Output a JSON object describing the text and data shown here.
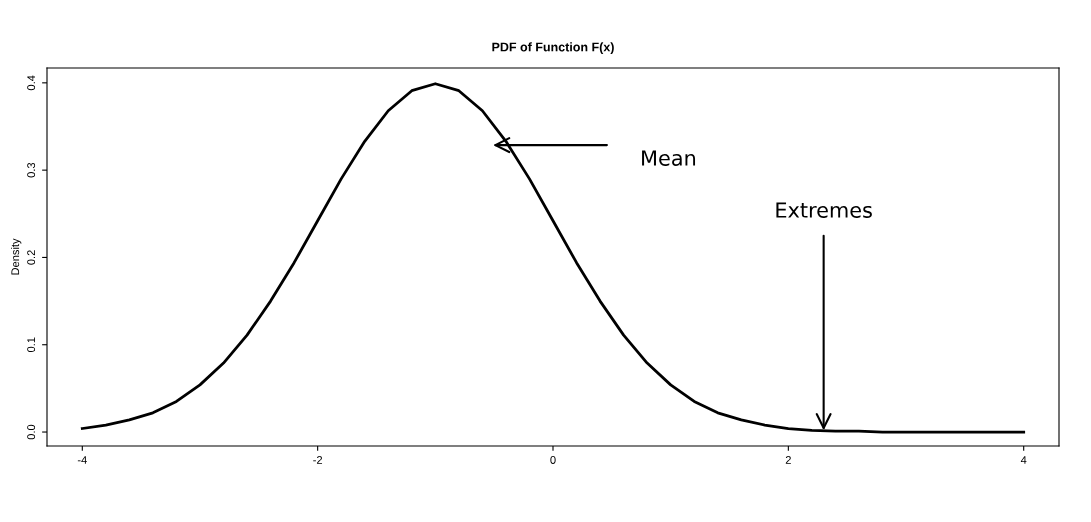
{
  "chart_data": {
    "type": "line",
    "title": "PDF of Function F(x)",
    "ylabel": "Density",
    "x": [
      -4,
      -3.8,
      -3.6,
      -3.4,
      -3.2,
      -3,
      -2.8,
      -2.6,
      -2.4,
      -2.2,
      -2,
      -1.8,
      -1.6,
      -1.4,
      -1.2,
      -1,
      -0.8,
      -0.6,
      -0.4,
      -0.2,
      0,
      0.2,
      0.4,
      0.6,
      0.8,
      1,
      1.2,
      1.4,
      1.6,
      1.8,
      2,
      2.2,
      2.4,
      2.6,
      2.8,
      3,
      3.2,
      3.4,
      3.6,
      3.8,
      4
    ],
    "series": [
      {
        "color": "#000000",
        "values": [
          0.004,
          0.008,
          0.014,
          0.022,
          0.035,
          0.054,
          0.079,
          0.111,
          0.15,
          0.194,
          0.242,
          0.29,
          0.333,
          0.368,
          0.391,
          0.399,
          0.391,
          0.368,
          0.333,
          0.29,
          0.242,
          0.194,
          0.15,
          0.111,
          0.079,
          0.054,
          0.035,
          0.022,
          0.014,
          0.008,
          0.004,
          0.002,
          0.001,
          0.001,
          0.0,
          0.0,
          0.0,
          0.0,
          0.0,
          0.0,
          0.0
        ]
      }
    ],
    "xlim": [
      -4.3,
      4.3
    ],
    "ylim": [
      -0.016,
      0.417
    ],
    "xticks": [
      -4,
      -2,
      0,
      2,
      4
    ],
    "yticks": [
      {
        "value": 0,
        "label": "0.0"
      },
      0.1,
      0.2,
      0.3,
      0.4
    ],
    "annotations": [
      "Mean",
      {
        "text": "Extremes",
        "x": 2.3,
        "y": 0.002
      }
    ],
    "line_style": "solid",
    "marker": "none",
    "grid": false,
    "legend": false
  }
}
